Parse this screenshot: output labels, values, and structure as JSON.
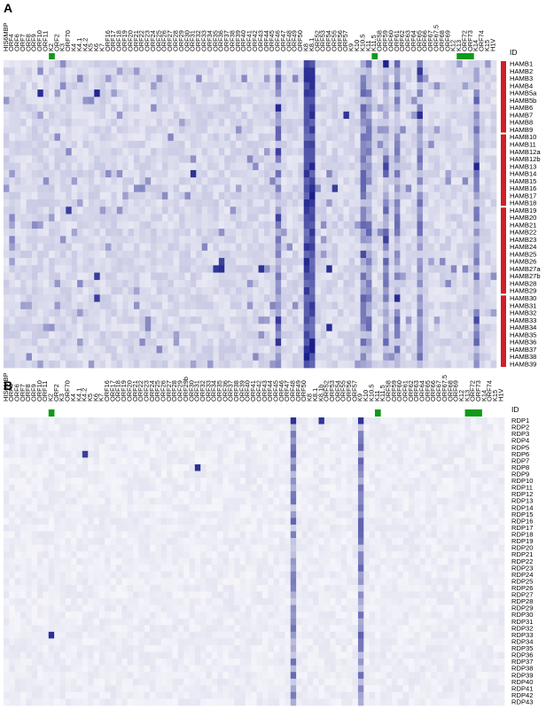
{
  "colors": {
    "cell_low": "#ffffff",
    "cell_high": "#1a1f8c",
    "marker_green": "#109a18",
    "group_red": "#d01e2a"
  },
  "chart_data": [
    {
      "type": "heatmap",
      "panel_label": "A",
      "id_label": "ID",
      "columns": [
        "HIS6MBP",
        "ORF4",
        "ORF6",
        "ORF7",
        "ORF8",
        "ORF9",
        "ORF10",
        "ORF11",
        "K2",
        "ORF2",
        "K3",
        "ORF70",
        "K4",
        "K4.1",
        "K4.2",
        "K5",
        "K6",
        "K7",
        "ORF16",
        "ORF17",
        "ORF18",
        "ORF19",
        "ORF20",
        "ORF21",
        "ORF22",
        "ORF23",
        "ORF24",
        "ORF25",
        "ORF26",
        "ORF27",
        "ORF28",
        "ORF29",
        "ORF30",
        "ORF31",
        "ORF32",
        "ORF33",
        "ORF34",
        "ORF35",
        "ORF36",
        "ORF37",
        "ORF38",
        "ORF39",
        "ORF40",
        "ORF41",
        "ORF42",
        "ORF43",
        "ORF44",
        "ORF45",
        "ORF46",
        "ORF47",
        "ORF48",
        "ORF49",
        "ORF50",
        "K8",
        "K8.1",
        "ORF52",
        "ORF53",
        "ORF54",
        "ORF55",
        "ORF56",
        "ORF57",
        "K9",
        "K10",
        "K10.5",
        "K11",
        "K11.5",
        "ORF58",
        "ORF59",
        "ORF60",
        "ORF61",
        "ORF62",
        "ORF63",
        "ORF64",
        "ORF65",
        "ORF66",
        "ORF67",
        "ORF67.5",
        "ORF68",
        "ORF69",
        "K12",
        "K13",
        "ORF72",
        "ORF73",
        "K14",
        "ORF74",
        "K15",
        "H1V"
      ],
      "green_columns": [
        8,
        65,
        80,
        81,
        82
      ],
      "rows": [
        "HAMB1",
        "HAMB2",
        "HAMB3",
        "HAMB4",
        "HAMB5a",
        "HAMB5b",
        "HAMB6",
        "HAMB7",
        "HAMB8",
        "HAMB9",
        "HAMB10",
        "HAMB11",
        "HAMB12a",
        "HAMB12b",
        "HAMB13",
        "HAMB14",
        "HAMB15",
        "HAMB16",
        "HAMB17",
        "HAMB18",
        "HAMB19",
        "HAMB20",
        "HAMB21",
        "HAMB22",
        "HAMB23",
        "HAMB24",
        "HAMB25",
        "HAMB26",
        "HAMB27a",
        "HAMB27b",
        "HAMB28",
        "HAMB29",
        "HAMB30",
        "HAMB31",
        "HAMB32",
        "HAMB33",
        "HAMB34",
        "HAMB35",
        "HAMB36",
        "HAMB37",
        "HAMB38",
        "HAMB39"
      ],
      "groups": [
        [
          0,
          9
        ],
        [
          10,
          19
        ],
        [
          20,
          31
        ],
        [
          32,
          41
        ]
      ],
      "hot_columns": [
        48,
        53,
        54,
        63,
        64,
        67,
        69,
        73,
        83
      ],
      "strong_columns": [
        53,
        54
      ],
      "dark_cells": [
        [
          4,
          6
        ],
        [
          4,
          16
        ],
        [
          6,
          48
        ],
        [
          7,
          60
        ],
        [
          7,
          73
        ],
        [
          12,
          48
        ],
        [
          14,
          67
        ],
        [
          15,
          33
        ],
        [
          17,
          58
        ],
        [
          20,
          11
        ],
        [
          21,
          48
        ],
        [
          24,
          67
        ],
        [
          27,
          38
        ],
        [
          28,
          38
        ],
        [
          28,
          37
        ],
        [
          28,
          45
        ],
        [
          28,
          57
        ],
        [
          29,
          16
        ],
        [
          32,
          16
        ],
        [
          35,
          48
        ],
        [
          36,
          57
        ],
        [
          38,
          48
        ]
      ]
    },
    {
      "type": "heatmap",
      "panel_label": "B",
      "id_label": "ID",
      "columns": [
        "HIS6MBP",
        "ORF4",
        "ORF6",
        "ORF7",
        "ORF8",
        "ORF9",
        "ORF10",
        "ORF11",
        "K2",
        "ORF2",
        "K3",
        "ORF70",
        "K4",
        "K4.1",
        "K4.2",
        "K5",
        "K6",
        "K7",
        "ORF16",
        "ORF17",
        "ORF18",
        "ORF19",
        "ORF20",
        "ORF21",
        "ORF22",
        "ORF23",
        "ORF24",
        "ORF25",
        "ORF26",
        "ORF27",
        "ORF28",
        "ORF29",
        "ORF29b",
        "ORF30",
        "ORF31",
        "ORF32",
        "ORF33",
        "ORF34",
        "ORF35",
        "ORF36",
        "ORF37",
        "ORF38",
        "ORF39",
        "ORF40",
        "ORF41",
        "ORF42",
        "ORF43",
        "ORF44",
        "ORF45",
        "ORF46",
        "ORF47",
        "ORF48",
        "ORF49",
        "ORF50",
        "K8",
        "K8.1",
        "K8.1b",
        "ORF52",
        "ORF53",
        "ORF54",
        "ORF55",
        "ORF56",
        "ORF57",
        "K9",
        "K10",
        "K10.5",
        "K11",
        "K11.5",
        "ORF58",
        "ORF59",
        "ORF60",
        "ORF61",
        "ORF62",
        "ORF63",
        "ORF64",
        "ORF65",
        "ORF66",
        "ORF67",
        "ORF67.5",
        "ORF68",
        "ORF69",
        "K12",
        "K13",
        "ORF72",
        "ORF73",
        "K14",
        "ORF74",
        "K15",
        "H1V"
      ],
      "green_columns": [
        8,
        66,
        82,
        83,
        84
      ],
      "rows": [
        "RDP1",
        "RDP2",
        "RDP3",
        "RDP4",
        "RDP5",
        "RDP6",
        "RDP7",
        "RDP8",
        "RDP9",
        "RDP10",
        "RDP11",
        "RDP12",
        "RDP13",
        "RDP14",
        "RDP15",
        "RDP16",
        "RDP17",
        "RDP18",
        "RDP19",
        "RDP20",
        "RDP21",
        "RDP22",
        "RDP23",
        "RDP24",
        "RDP25",
        "RDP26",
        "RDP27",
        "RDP28",
        "RDP29",
        "RDP30",
        "RDP31",
        "RDP32",
        "RDP33",
        "RDP34",
        "RDP35",
        "RDP36",
        "RDP37",
        "RDP38",
        "RDP39",
        "RDP40",
        "RDP41",
        "RDP42",
        "RDP43"
      ],
      "groups": [],
      "hot_columns": [
        51,
        63
      ],
      "strong_columns": [],
      "dark_cells": [
        [
          7,
          34
        ],
        [
          0,
          51
        ],
        [
          0,
          56
        ],
        [
          0,
          63
        ],
        [
          5,
          14
        ],
        [
          32,
          8
        ]
      ]
    }
  ]
}
